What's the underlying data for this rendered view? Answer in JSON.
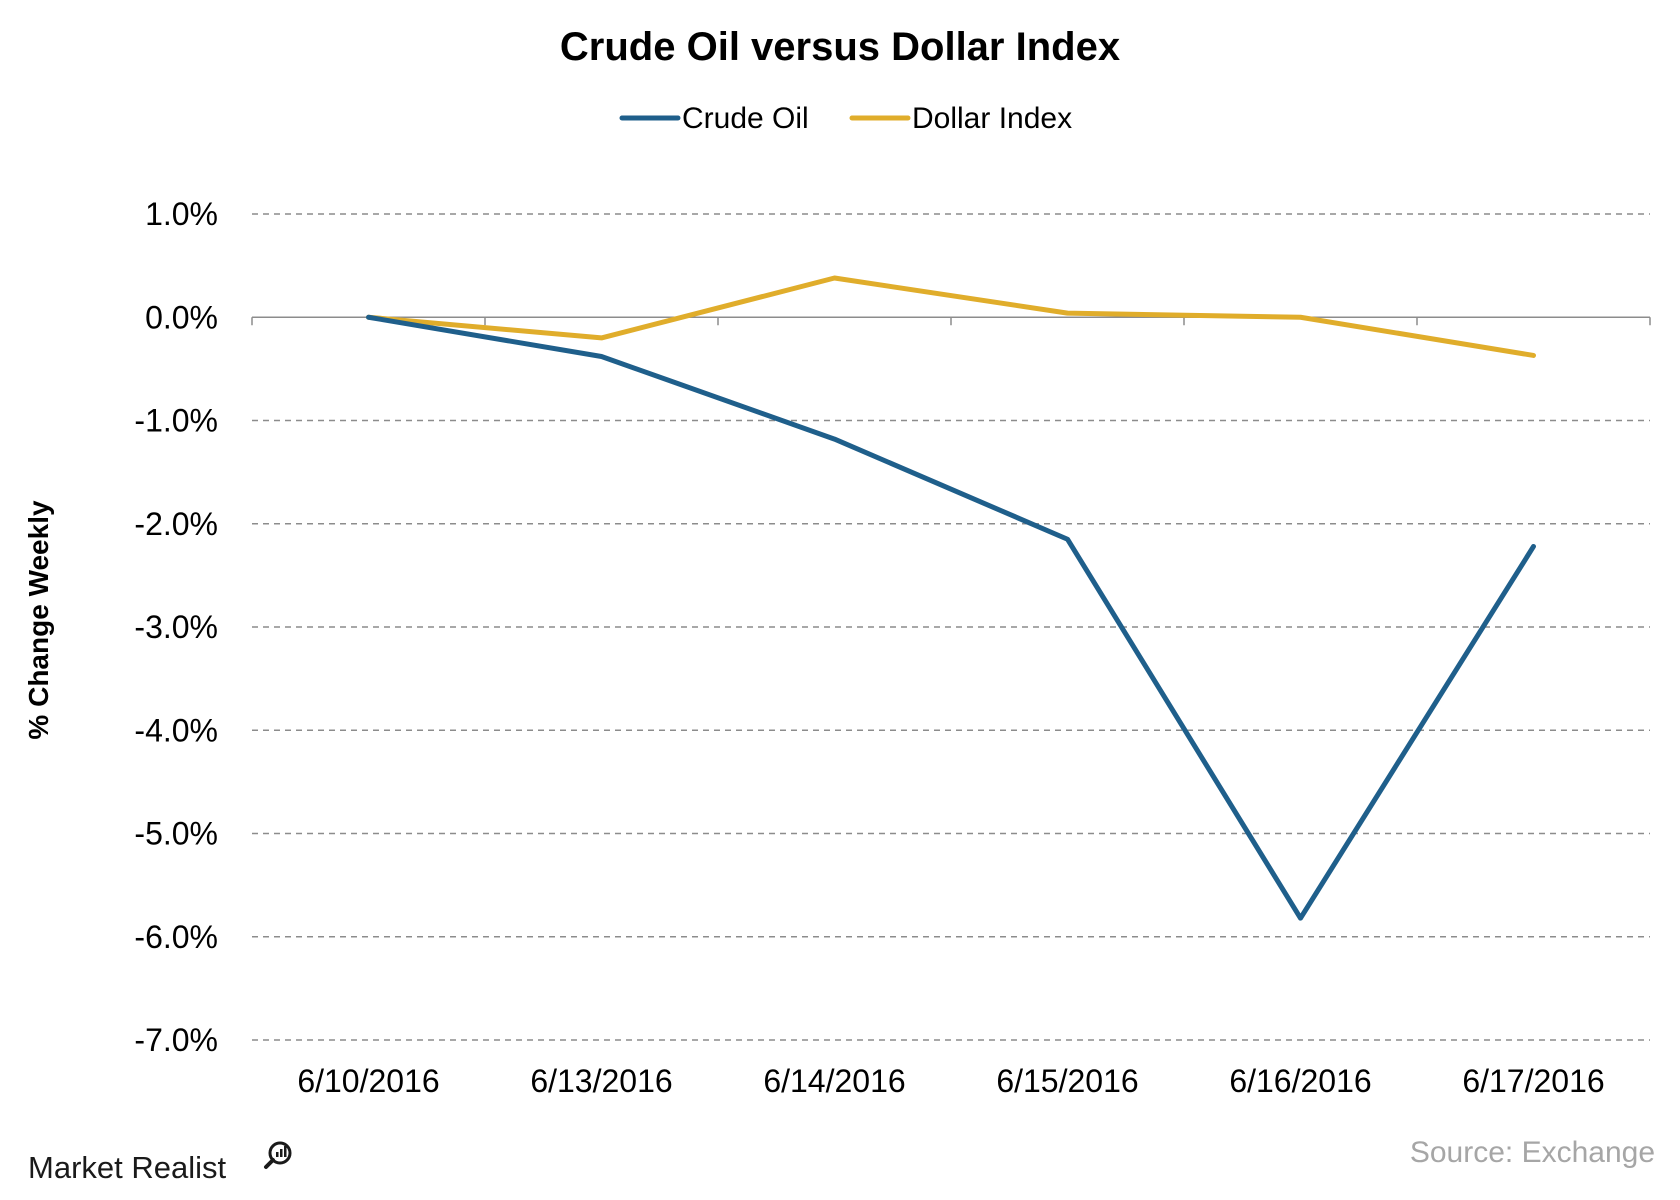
{
  "chart_data": {
    "type": "line",
    "title": "Crude Oil versus Dollar Index",
    "ylabel": "% Change Weekly",
    "xlabel": "",
    "categories": [
      "6/10/2016",
      "6/13/2016",
      "6/14/2016",
      "6/15/2016",
      "6/16/2016",
      "6/17/2016"
    ],
    "series": [
      {
        "name": "Crude Oil",
        "color": "#1f5f8b",
        "values": [
          0.0,
          -0.38,
          -1.18,
          -2.15,
          -5.82,
          -2.22
        ]
      },
      {
        "name": "Dollar Index",
        "color": "#e0ad2b",
        "values": [
          0.0,
          -0.2,
          0.38,
          0.04,
          0.0,
          -0.37
        ]
      }
    ],
    "ylim": [
      -7.0,
      1.0
    ],
    "yticks": [
      1.0,
      0.0,
      -1.0,
      -2.0,
      -3.0,
      -4.0,
      -5.0,
      -6.0,
      -7.0
    ],
    "ytick_labels": [
      "1.0%",
      "0.0%",
      "-1.0%",
      "-2.0%",
      "-3.0%",
      "-4.0%",
      "-5.0%",
      "-6.0%",
      "-7.0%"
    ],
    "grid": "dashed horizontal",
    "legend_position": "top-center"
  },
  "footer": {
    "source": "Source: Exchange",
    "brand": "Market Realist"
  }
}
